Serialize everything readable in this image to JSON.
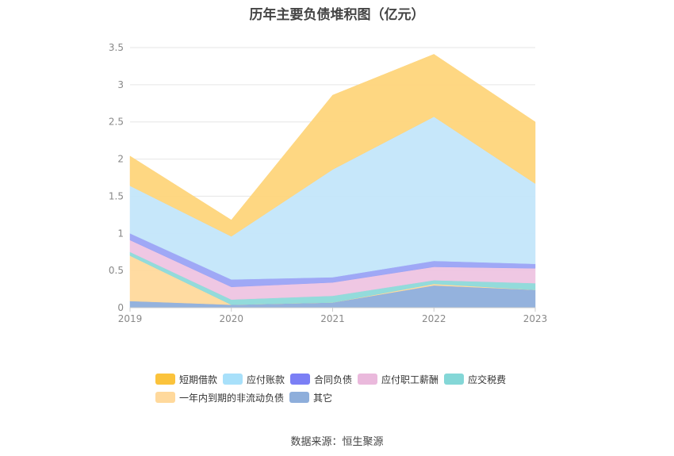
{
  "title": "历年主要负债堆积图（亿元）",
  "source": "数据来源：恒生聚源",
  "chart_data": {
    "type": "area",
    "stacked": true,
    "x": [
      "2019",
      "2020",
      "2021",
      "2022",
      "2023"
    ],
    "ylim": [
      0,
      3.5
    ],
    "yticks": [
      "0",
      "0.5",
      "1",
      "1.5",
      "2",
      "2.5",
      "3",
      "3.5"
    ],
    "grid": true,
    "legend_position": "bottom",
    "series": [
      {
        "name": "其它",
        "color": "#8eaedb",
        "values": [
          0.09,
          0.04,
          0.07,
          0.3,
          0.24
        ]
      },
      {
        "name": "一年内到期的非流动负债",
        "color": "#ffd99c",
        "values": [
          0.61,
          0.0,
          0.0,
          0.02,
          0.0
        ]
      },
      {
        "name": "应交税费",
        "color": "#8dd9d9",
        "values": [
          0.05,
          0.07,
          0.09,
          0.05,
          0.09
        ]
      },
      {
        "name": "应付职工薪酬",
        "color": "#eec4e2",
        "values": [
          0.16,
          0.17,
          0.18,
          0.18,
          0.2
        ]
      },
      {
        "name": "合同负债",
        "color": "#9aa3f5",
        "values": [
          0.09,
          0.1,
          0.07,
          0.08,
          0.06
        ]
      },
      {
        "name": "应付账款",
        "color": "#c3e6fa",
        "values": [
          0.64,
          0.58,
          1.45,
          1.94,
          1.08
        ]
      },
      {
        "name": "短期借款",
        "color": "#fed57b",
        "values": [
          0.4,
          0.22,
          1.0,
          0.84,
          0.83
        ]
      }
    ],
    "legend_order": [
      "短期借款",
      "应付账款",
      "合同负债",
      "应付职工薪酬",
      "应交税费",
      "一年内到期的非流动负债",
      "其它"
    ],
    "legend_colors": {
      "短期借款": "#fbc33c",
      "应付账款": "#a8e0fa",
      "合同负债": "#7b7ff5",
      "应付职工薪酬": "#eab9dc",
      "应交税费": "#84d7d7",
      "一年内到期的非流动负债": "#ffd99c",
      "其它": "#8eaedb"
    }
  }
}
